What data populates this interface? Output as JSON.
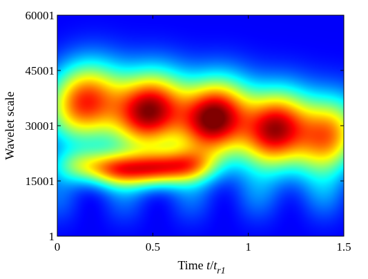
{
  "chart_data": {
    "type": "heatmap",
    "title": "",
    "xlabel": {
      "prefix": "Time ",
      "var": "t",
      "slash": "/",
      "var2": "t",
      "sub": "r1"
    },
    "ylabel": "Wavelet scale",
    "xlim": [
      0,
      1.5
    ],
    "ylim": [
      1,
      60001
    ],
    "xticks": [
      0,
      0.5,
      1,
      1.5
    ],
    "xtick_labels": [
      "0",
      "0.5",
      "1",
      "1.5"
    ],
    "yticks": [
      1,
      15001,
      30001,
      45001,
      60001
    ],
    "ytick_labels": [
      "1",
      "15001",
      "30001",
      "45001",
      "60001"
    ],
    "colormap": "jet",
    "grid": false,
    "hotspots": [
      {
        "t": 0.14,
        "scale": 36500,
        "level": 0.8
      },
      {
        "t": 0.48,
        "scale": 34000,
        "level": 0.95
      },
      {
        "t": 0.82,
        "scale": 32000,
        "level": 1.0
      },
      {
        "t": 1.14,
        "scale": 29000,
        "level": 0.9
      },
      {
        "t": 1.42,
        "scale": 27000,
        "level": 0.7
      },
      {
        "t": 0.12,
        "scale": 19000,
        "level": 0.35
      },
      {
        "t": 0.31,
        "scale": 18000,
        "level": 0.55
      },
      {
        "t": 0.5,
        "scale": 18000,
        "level": 0.55
      },
      {
        "t": 0.68,
        "scale": 19000,
        "level": 0.5
      }
    ]
  }
}
